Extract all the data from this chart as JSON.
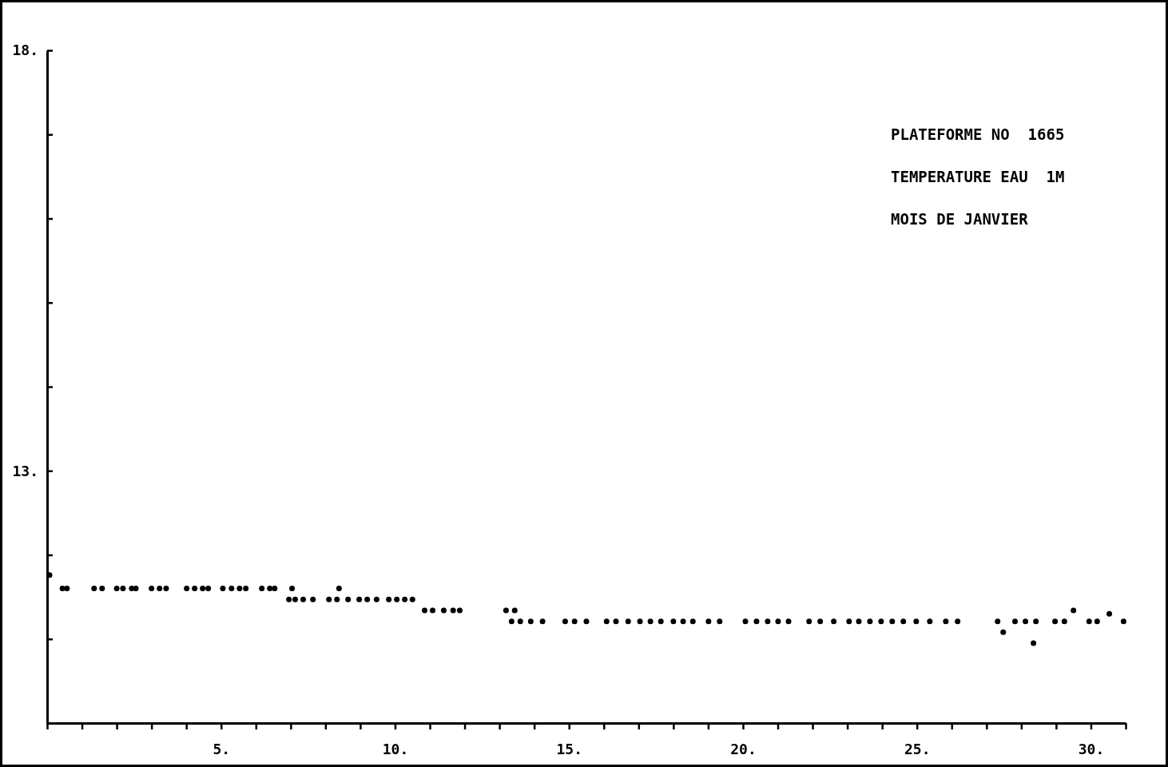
{
  "chart_data": {
    "type": "scatter",
    "annotations": [
      "PLATEFORME NO  1665",
      "TEMPERATURE EAU  1M",
      "MOIS DE JANVIER"
    ],
    "xlim": [
      0,
      31
    ],
    "xticks": [
      {
        "value": 0,
        "label": null
      },
      {
        "value": 1,
        "label": null
      },
      {
        "value": 2,
        "label": null
      },
      {
        "value": 3,
        "label": null
      },
      {
        "value": 4,
        "label": null
      },
      {
        "value": 5,
        "label": "5."
      },
      {
        "value": 6,
        "label": null
      },
      {
        "value": 7,
        "label": null
      },
      {
        "value": 8,
        "label": null
      },
      {
        "value": 9,
        "label": null
      },
      {
        "value": 10,
        "label": "10."
      },
      {
        "value": 11,
        "label": null
      },
      {
        "value": 12,
        "label": null
      },
      {
        "value": 13,
        "label": null
      },
      {
        "value": 14,
        "label": null
      },
      {
        "value": 15,
        "label": "15."
      },
      {
        "value": 16,
        "label": null
      },
      {
        "value": 17,
        "label": null
      },
      {
        "value": 18,
        "label": null
      },
      {
        "value": 19,
        "label": null
      },
      {
        "value": 20,
        "label": "20."
      },
      {
        "value": 21,
        "label": null
      },
      {
        "value": 22,
        "label": null
      },
      {
        "value": 23,
        "label": null
      },
      {
        "value": 24,
        "label": null
      },
      {
        "value": 25,
        "label": "25."
      },
      {
        "value": 26,
        "label": null
      },
      {
        "value": 27,
        "label": null
      },
      {
        "value": 28,
        "label": null
      },
      {
        "value": 29,
        "label": null
      },
      {
        "value": 30,
        "label": "30."
      },
      {
        "value": 31,
        "label": null
      }
    ],
    "ylim": [
      10,
      18
    ],
    "yticks": [
      {
        "value": 10,
        "label": null
      },
      {
        "value": 11,
        "label": null
      },
      {
        "value": 12,
        "label": null
      },
      {
        "value": 13,
        "label": "13."
      },
      {
        "value": 14,
        "label": null
      },
      {
        "value": 15,
        "label": null
      },
      {
        "value": 16,
        "label": null
      },
      {
        "value": 17,
        "label": null
      },
      {
        "value": 18,
        "label": "18."
      }
    ],
    "grid": false,
    "marker": "circle",
    "series": [
      {
        "color": "#000000",
        "x": [
          0.07,
          0.44,
          0.57,
          1.35,
          1.58,
          2.0,
          2.18,
          2.43,
          2.55,
          3.0,
          3.23,
          3.42,
          4.01,
          4.24,
          4.47,
          4.63,
          5.05,
          5.3,
          5.53,
          5.71,
          6.17,
          6.4,
          6.54,
          6.95,
          7.04,
          7.13,
          7.36,
          7.64,
          8.1,
          8.33,
          8.39,
          8.65,
          8.97,
          9.2,
          9.47,
          9.82,
          10.05,
          10.28,
          10.5,
          10.85,
          11.08,
          11.4,
          11.67,
          11.86,
          13.19,
          13.35,
          13.44,
          13.6,
          13.9,
          14.24,
          14.89,
          15.16,
          15.5,
          16.08,
          16.35,
          16.7,
          17.04,
          17.34,
          17.64,
          18.0,
          18.28,
          18.56,
          19.01,
          19.33,
          20.07,
          20.39,
          20.71,
          21.01,
          21.31,
          21.9,
          22.22,
          22.61,
          23.05,
          23.33,
          23.65,
          23.97,
          24.29,
          24.61,
          24.98,
          25.37,
          25.83,
          26.17,
          27.32,
          27.48,
          27.82,
          28.12,
          28.35,
          28.42,
          28.97,
          29.24,
          29.5,
          29.95,
          30.18,
          30.53,
          30.94
        ],
        "values": [
          11.76,
          11.6,
          11.6,
          11.6,
          11.6,
          11.6,
          11.6,
          11.6,
          11.6,
          11.6,
          11.6,
          11.6,
          11.6,
          11.6,
          11.6,
          11.6,
          11.6,
          11.6,
          11.6,
          11.6,
          11.6,
          11.6,
          11.6,
          11.47,
          11.6,
          11.47,
          11.47,
          11.47,
          11.47,
          11.47,
          11.6,
          11.47,
          11.47,
          11.47,
          11.47,
          11.47,
          11.47,
          11.47,
          11.47,
          11.34,
          11.34,
          11.34,
          11.34,
          11.34,
          11.34,
          11.21,
          11.34,
          11.21,
          11.21,
          11.21,
          11.21,
          11.21,
          11.21,
          11.21,
          11.21,
          11.21,
          11.21,
          11.21,
          11.21,
          11.21,
          11.21,
          11.21,
          11.21,
          11.21,
          11.21,
          11.21,
          11.21,
          11.21,
          11.21,
          11.21,
          11.21,
          11.21,
          11.21,
          11.21,
          11.21,
          11.21,
          11.21,
          11.21,
          11.21,
          11.21,
          11.21,
          11.21,
          11.21,
          11.08,
          11.21,
          11.21,
          10.95,
          11.21,
          11.21,
          11.21,
          11.34,
          11.21,
          11.21,
          11.3,
          11.21
        ]
      }
    ]
  }
}
